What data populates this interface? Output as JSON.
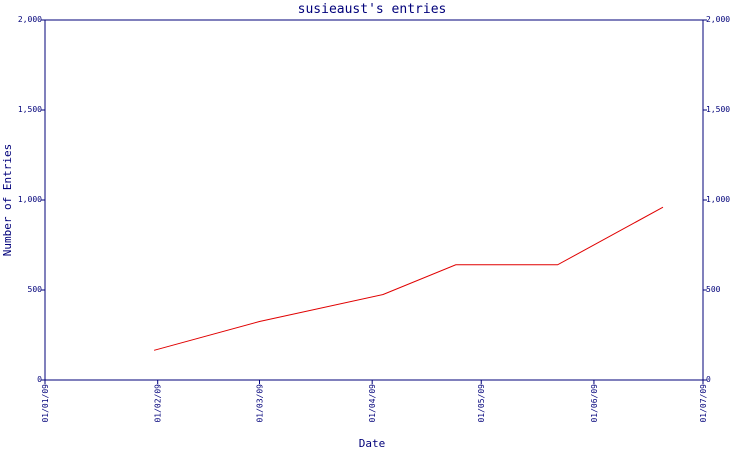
{
  "chart_data": {
    "type": "line",
    "title": "susieaust's entries",
    "xlabel": "Date",
    "ylabel": "Number of Entries",
    "ylim": [
      0,
      2000
    ],
    "y_ticks": [
      0,
      500,
      1000,
      1500,
      2000
    ],
    "y_tick_labels": [
      "0",
      "500",
      "1,000",
      "1,500",
      "2,000"
    ],
    "x_range": [
      "2009-01-01",
      "2009-07-01"
    ],
    "x_ticks": [
      "2009-01-01",
      "2009-02-01",
      "2009-03-01",
      "2009-04-01",
      "2009-05-01",
      "2009-06-01",
      "2009-07-01"
    ],
    "x_tick_labels": [
      "01/01/09",
      "01/02/09",
      "01/03/09",
      "01/04/09",
      "01/05/09",
      "01/06/09",
      "01/07/09"
    ],
    "series": [
      {
        "x": [
          "2009-01-31",
          "2009-03-01",
          "2009-04-04",
          "2009-04-24",
          "2009-05-22",
          "2009-06-20"
        ],
        "y": [
          165,
          325,
          475,
          640,
          640,
          960
        ],
        "color": "#e00000"
      }
    ],
    "grid": false,
    "right_axis_mirror": true
  }
}
